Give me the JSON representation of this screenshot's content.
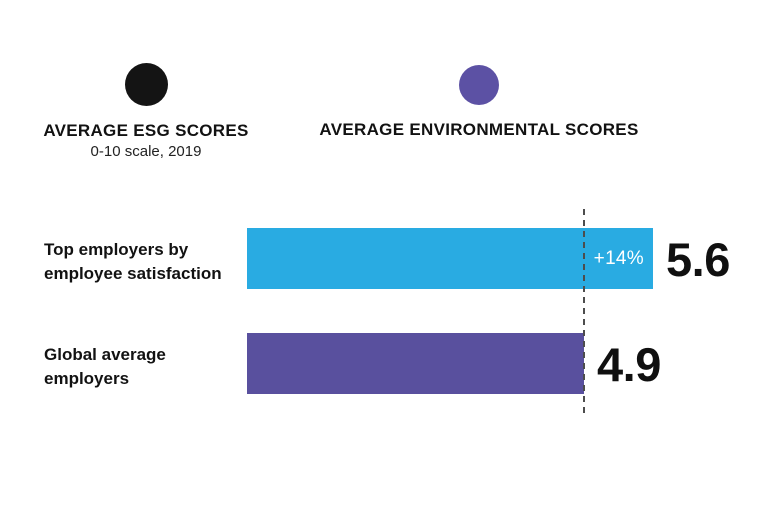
{
  "legend": {
    "esg": {
      "label": "AVERAGE ESG SCORES",
      "sublabel": "0-10 scale, 2019",
      "color": "#141414"
    },
    "environmental": {
      "label": "AVERAGE ENVIRONMENTAL SCORES",
      "color": "#5C51A4"
    }
  },
  "rows": {
    "top_employers": {
      "label": "Top employers by\nemployee satisfaction",
      "value": "5.6",
      "annotation": "+14%",
      "bar_color": "#29ABE2"
    },
    "global_average": {
      "label": "Global average\nemployers",
      "value": "4.9",
      "bar_color": "#59509E"
    }
  },
  "chart_data": {
    "type": "bar",
    "orientation": "horizontal",
    "title": "AVERAGE ESG SCORES",
    "subtitle": "0-10 scale, 2019",
    "categories": [
      "Top employers by employee satisfaction",
      "Global average employers"
    ],
    "values": [
      5.6,
      4.9
    ],
    "bar_colors": [
      "#29ABE2",
      "#59509E"
    ],
    "data_labels": [
      "5.6",
      "4.9"
    ],
    "annotations": [
      {
        "category": "Top employers by employee satisfaction",
        "text": "+14%",
        "position": "inside-end",
        "color": "#ffffff"
      }
    ],
    "reference_line": {
      "value": 4.9,
      "style": "dashed",
      "color": "#4d4d4d"
    },
    "legend": [
      {
        "label": "AVERAGE ESG SCORES",
        "marker": "circle",
        "color": "#141414"
      },
      {
        "label": "AVERAGE ENVIRONMENTAL SCORES",
        "marker": "circle",
        "color": "#5C51A4"
      }
    ],
    "legend_position": "top",
    "grid": false,
    "axis_ticks": false,
    "xlim": [
      0,
      5.9
    ]
  }
}
